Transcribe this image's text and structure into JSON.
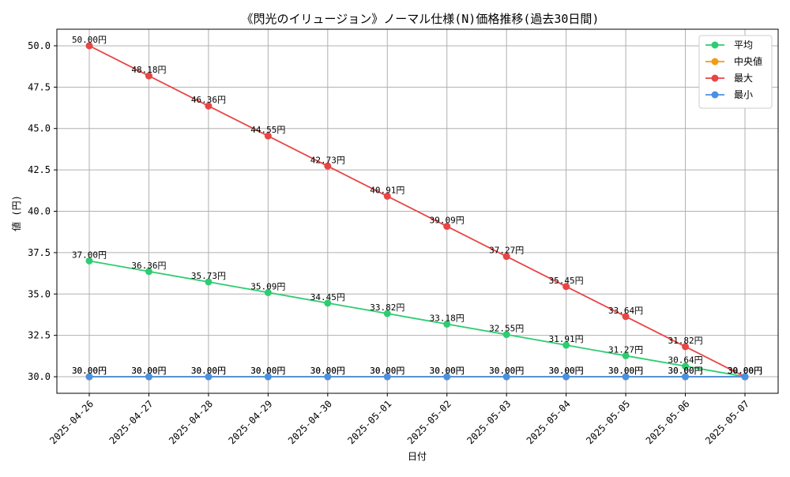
{
  "chart_data": {
    "type": "line",
    "title": "《閃光のイリュージョン》ノーマル仕様(N)価格推移(過去30日間)",
    "xlabel": "日付",
    "ylabel": "値 (円)",
    "categories": [
      "2025-04-26",
      "2025-04-27",
      "2025-04-28",
      "2025-04-29",
      "2025-04-30",
      "2025-05-01",
      "2025-05-02",
      "2025-05-03",
      "2025-05-04",
      "2025-05-05",
      "2025-05-06",
      "2025-05-07"
    ],
    "ylim": [
      29.0,
      51.0
    ],
    "yticks": [
      30.0,
      32.5,
      35.0,
      37.5,
      40.0,
      42.5,
      45.0,
      47.5,
      50.0
    ],
    "ytick_labels": [
      "30.0",
      "32.5",
      "35.0",
      "37.5",
      "40.0",
      "42.5",
      "45.0",
      "47.5",
      "50.0"
    ],
    "grid": true,
    "legend_position": "top-right",
    "value_suffix": "円",
    "series": [
      {
        "name": "平均",
        "color": "#2ecc71",
        "values": [
          37.0,
          36.36,
          35.73,
          35.09,
          34.45,
          33.82,
          33.18,
          32.55,
          31.91,
          31.27,
          30.64,
          30.0
        ]
      },
      {
        "name": "中央値",
        "color": "#f39c12",
        "values": [
          30.0,
          30.0,
          30.0,
          30.0,
          30.0,
          30.0,
          30.0,
          30.0,
          30.0,
          30.0,
          30.0,
          30.0
        ]
      },
      {
        "name": "最大",
        "color": "#e84545",
        "values": [
          50.0,
          48.18,
          46.36,
          44.55,
          42.73,
          40.91,
          39.09,
          37.27,
          35.45,
          33.64,
          31.82,
          30.0
        ]
      },
      {
        "name": "最小",
        "color": "#4a90e2",
        "values": [
          30.0,
          30.0,
          30.0,
          30.0,
          30.0,
          30.0,
          30.0,
          30.0,
          30.0,
          30.0,
          30.0,
          30.0
        ]
      }
    ]
  }
}
